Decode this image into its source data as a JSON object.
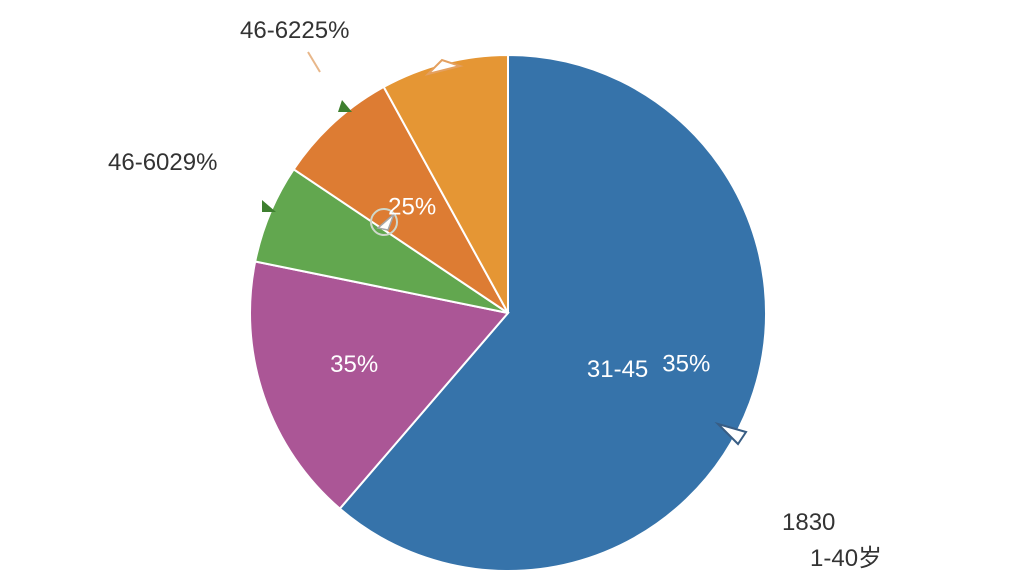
{
  "chart_data": {
    "type": "pie",
    "slices": [
      {
        "name": "31-45",
        "value": 61.3,
        "color": "#3673aa",
        "labels": [
          "31-45",
          "35%"
        ]
      },
      {
        "name": "",
        "value": 16.9,
        "color": "#ab5696",
        "labels": [
          "35%"
        ]
      },
      {
        "name": "",
        "value": 6.2,
        "color": "#62a74f",
        "labels": []
      },
      {
        "name": "",
        "value": 7.6,
        "color": "#dd7c33",
        "labels": [
          "25%"
        ]
      },
      {
        "name": "",
        "value": 8.0,
        "color": "#e59634",
        "labels": []
      }
    ],
    "annotations": [
      {
        "text": "46-6225%"
      },
      {
        "text": "46-6029%"
      },
      {
        "text": "1830"
      },
      {
        "text": "1-40岁"
      }
    ]
  }
}
